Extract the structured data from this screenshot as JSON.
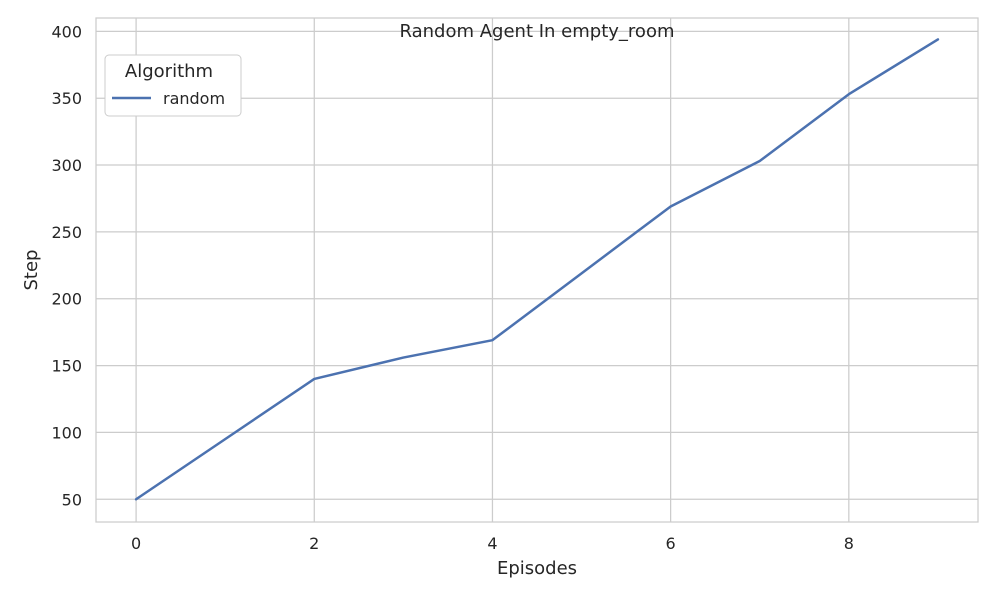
{
  "chart_data": {
    "type": "line",
    "title": "Random Agent In empty_room",
    "xlabel": "Episodes",
    "ylabel": "Step",
    "xlim": [
      -0.45,
      9.45
    ],
    "ylim": [
      33,
      410
    ],
    "xticks": [
      0,
      2,
      4,
      6,
      8
    ],
    "yticks": [
      50,
      100,
      150,
      200,
      250,
      300,
      350,
      400
    ],
    "grid": true,
    "legend": {
      "title": "Algorithm",
      "placement": "top-left"
    },
    "x": [
      0,
      1,
      2,
      3,
      4,
      5,
      6,
      7,
      8,
      9
    ],
    "series": [
      {
        "name": "random",
        "color": "#4c72b0",
        "values": [
          50,
          95,
          140,
          156,
          169,
          219,
          269,
          303,
          353,
          394
        ]
      }
    ]
  }
}
